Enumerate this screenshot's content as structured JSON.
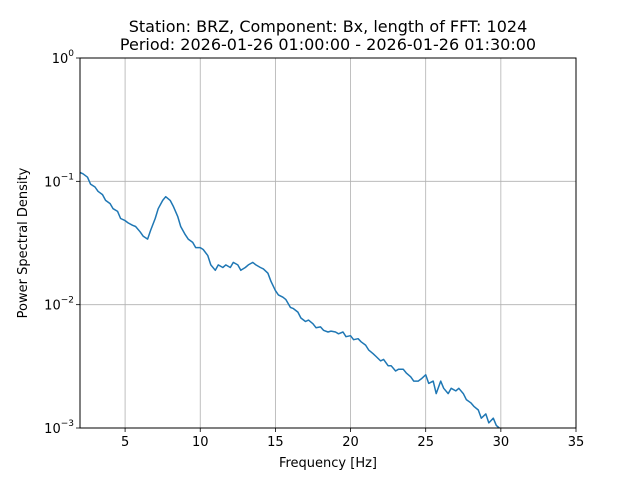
{
  "chart_data": {
    "type": "line",
    "title": "Station: BRZ, Component: Bx, length of FFT: 1024",
    "subtitle": "Period: 2026-01-26 01:00:00 - 2026-01-26 01:30:00",
    "xlabel": "Frequency [Hz]",
    "ylabel": "Power Spectral Density",
    "xlim": [
      2,
      35
    ],
    "ylim": [
      0.001,
      1
    ],
    "yscale": "log",
    "grid": true,
    "line_color": "#1f77b4",
    "x_ticks": [
      {
        "value": 5,
        "label": "5"
      },
      {
        "value": 10,
        "label": "10"
      },
      {
        "value": 15,
        "label": "15"
      },
      {
        "value": 20,
        "label": "20"
      },
      {
        "value": 25,
        "label": "25"
      },
      {
        "value": 30,
        "label": "30"
      },
      {
        "value": 35,
        "label": "35"
      }
    ],
    "y_ticks": [
      {
        "value": 0.001,
        "base": "10",
        "exp": "−3"
      },
      {
        "value": 0.01,
        "base": "10",
        "exp": "−2"
      },
      {
        "value": 0.1,
        "base": "10",
        "exp": "−1"
      },
      {
        "value": 1,
        "base": "10",
        "exp": "0"
      }
    ],
    "series": [
      {
        "x": [
          2.0,
          2.2,
          2.5,
          2.7,
          3.0,
          3.2,
          3.5,
          3.7,
          4.0,
          4.2,
          4.5,
          4.7,
          5.0,
          5.2,
          5.5,
          5.7,
          6.0,
          6.2,
          6.5,
          6.7,
          7.0,
          7.2,
          7.5,
          7.7,
          8.0,
          8.2,
          8.5,
          8.7,
          9.0,
          9.2,
          9.5,
          9.7,
          10.0,
          10.2,
          10.5,
          10.7,
          11.0,
          11.2,
          11.5,
          11.7,
          12.0,
          12.2,
          12.5,
          12.7,
          13.0,
          13.2,
          13.5,
          13.7,
          14.0,
          14.2,
          14.5,
          14.7,
          15.0,
          15.2,
          15.5,
          15.7,
          16.0,
          16.2,
          16.5,
          16.7,
          17.0,
          17.2,
          17.5,
          17.7,
          18.0,
          18.2,
          18.5,
          18.7,
          19.0,
          19.2,
          19.5,
          19.7,
          20.0,
          20.2,
          20.5,
          20.7,
          21.0,
          21.2,
          21.5,
          21.7,
          22.0,
          22.2,
          22.5,
          22.7,
          23.0,
          23.2,
          23.5,
          23.7,
          24.0,
          24.2,
          24.5,
          24.7,
          25.0,
          25.2,
          25.5,
          25.7,
          26.0,
          26.2,
          26.5,
          26.7,
          27.0,
          27.2,
          27.5,
          27.7,
          28.0,
          28.2,
          28.5,
          28.7,
          29.0,
          29.2,
          29.5,
          29.7,
          29.9
        ],
        "y": [
          0.118,
          0.115,
          0.108,
          0.095,
          0.09,
          0.083,
          0.078,
          0.07,
          0.066,
          0.06,
          0.057,
          0.05,
          0.048,
          0.046,
          0.044,
          0.043,
          0.039,
          0.036,
          0.034,
          0.04,
          0.05,
          0.06,
          0.07,
          0.075,
          0.07,
          0.063,
          0.052,
          0.043,
          0.037,
          0.034,
          0.032,
          0.029,
          0.029,
          0.028,
          0.025,
          0.021,
          0.019,
          0.021,
          0.02,
          0.021,
          0.02,
          0.022,
          0.021,
          0.019,
          0.02,
          0.021,
          0.022,
          0.021,
          0.02,
          0.0195,
          0.018,
          0.0155,
          0.013,
          0.012,
          0.0115,
          0.011,
          0.0095,
          0.0093,
          0.0087,
          0.0078,
          0.0073,
          0.0075,
          0.007,
          0.0065,
          0.0066,
          0.0062,
          0.006,
          0.0061,
          0.006,
          0.0058,
          0.006,
          0.0055,
          0.0056,
          0.0052,
          0.0053,
          0.005,
          0.0047,
          0.0043,
          0.004,
          0.0038,
          0.0035,
          0.0036,
          0.0032,
          0.0032,
          0.0029,
          0.003,
          0.003,
          0.0028,
          0.0026,
          0.0024,
          0.0024,
          0.0025,
          0.0027,
          0.0023,
          0.0024,
          0.0019,
          0.0024,
          0.0021,
          0.0019,
          0.0021,
          0.002,
          0.0021,
          0.0019,
          0.0017,
          0.0016,
          0.0015,
          0.0014,
          0.0012,
          0.0013,
          0.0011,
          0.0012,
          0.00105,
          0.001
        ]
      }
    ]
  }
}
